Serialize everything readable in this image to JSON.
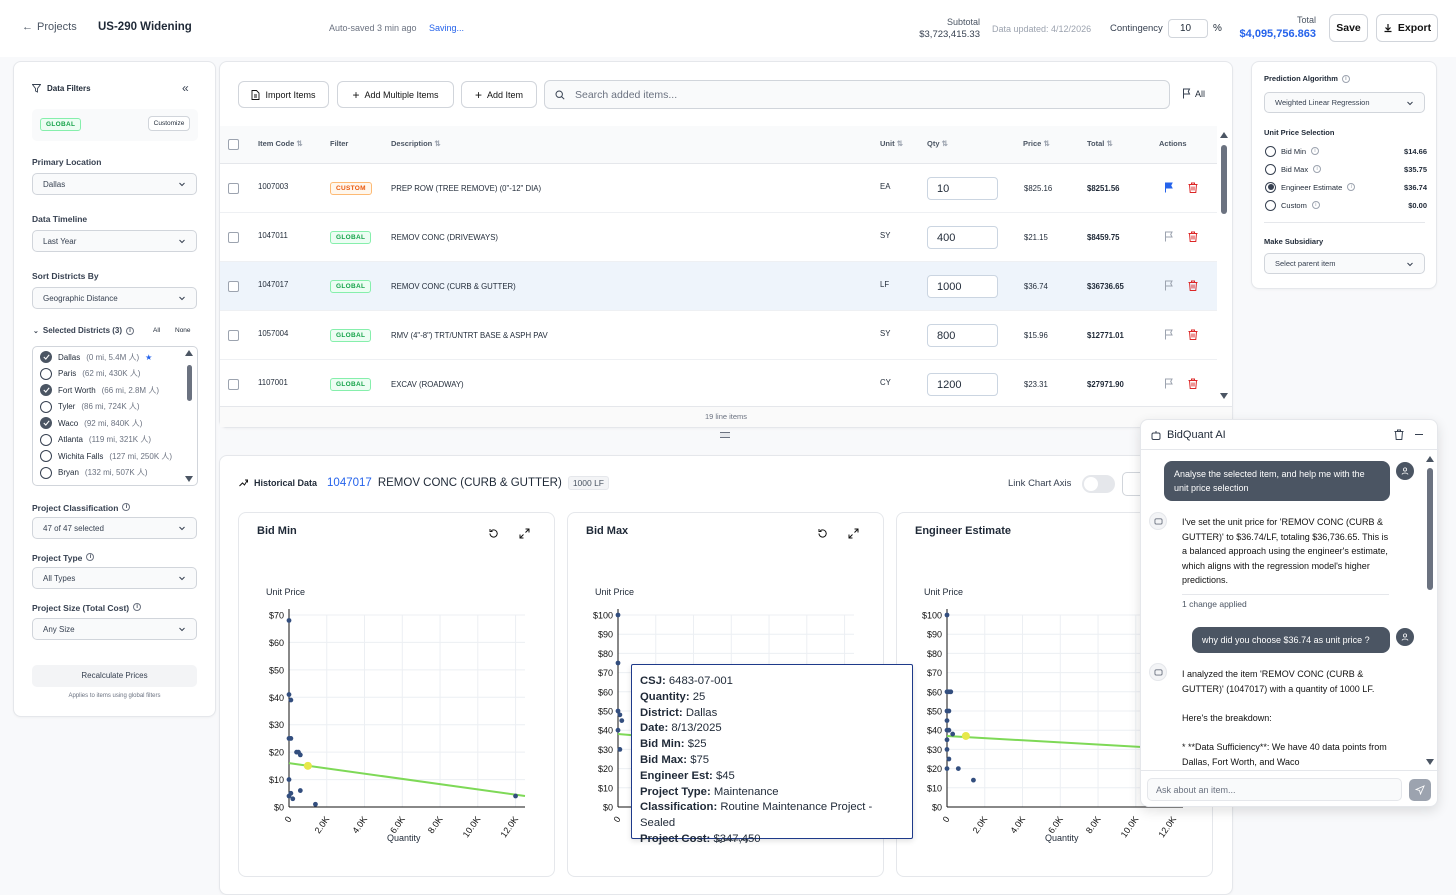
{
  "header": {
    "back": "Projects",
    "project": "US-290 Widening",
    "autosave": "Auto-saved 3 min ago",
    "saving": "Saving...",
    "subtotal_label": "Subtotal",
    "subtotal": "$3,723,415.33",
    "data_updated": "Data updated: 4/12/2026",
    "contingency_label": "Contingency",
    "contingency": "10",
    "pct": "%",
    "total_label": "Total",
    "total": "$4,095,756.863",
    "save": "Save",
    "export": "Export"
  },
  "filters": {
    "title": "Data Filters",
    "badge": "GLOBAL",
    "customize": "Customize",
    "primary_location_label": "Primary Location",
    "primary_location": "Dallas",
    "timeline_label": "Data Timeline",
    "timeline": "Last Year",
    "sort_label": "Sort Districts By",
    "sort": "Geographic Distance",
    "selected_label": "Selected Districts (3)",
    "all": "All",
    "none": "None",
    "districts": [
      {
        "name": "Dallas",
        "meta": "(0 mi, 5.4M 人)",
        "star": "★",
        "checked": true
      },
      {
        "name": "Paris",
        "meta": "(62 mi, 430K 人)",
        "star": "",
        "checked": false
      },
      {
        "name": "Fort Worth",
        "meta": "(66 mi, 2.8M 人)",
        "star": "",
        "checked": true
      },
      {
        "name": "Tyler",
        "meta": "(86 mi, 724K 人)",
        "star": "",
        "checked": false
      },
      {
        "name": "Waco",
        "meta": "(92 mi, 840K 人)",
        "star": "",
        "checked": true
      },
      {
        "name": "Atlanta",
        "meta": "(119 mi, 321K 人)",
        "star": "",
        "checked": false
      },
      {
        "name": "Wichita Falls",
        "meta": "(127 mi, 250K 人)",
        "star": "",
        "checked": false
      },
      {
        "name": "Bryan",
        "meta": "(132 mi, 507K 人)",
        "star": "",
        "checked": false
      }
    ],
    "classification_label": "Project Classification",
    "classification": "47 of 47 selected",
    "type_label": "Project Type",
    "type": "All Types",
    "size_label": "Project Size (Total Cost)",
    "size": "Any Size",
    "recalc": "Recalculate Prices",
    "recalc_note": "Applies to items using global filters"
  },
  "toolbar": {
    "import": "Import Items",
    "add_multiple": "Add Multiple Items",
    "add_item": "Add Item",
    "search_placeholder": "Search added items...",
    "flag_all": "All"
  },
  "table": {
    "headers": {
      "code": "Item Code",
      "filter": "Filter",
      "desc": "Description",
      "unit": "Unit",
      "qty": "Qty",
      "price": "Price",
      "total": "Total",
      "actions": "Actions"
    },
    "rows": [
      {
        "code": "1007003",
        "filter": "CUSTOM",
        "desc": "PREP ROW (TREE REMOVE) (0\"-12\" DIA)",
        "unit": "EA",
        "qty": "10",
        "price": "$825.16",
        "total": "$8251.56",
        "flag": true
      },
      {
        "code": "1047011",
        "filter": "GLOBAL",
        "desc": "REMOV CONC (DRIVEWAYS)",
        "unit": "SY",
        "qty": "400",
        "price": "$21.15",
        "total": "$8459.75",
        "flag": false
      },
      {
        "code": "1047017",
        "filter": "GLOBAL",
        "desc": "REMOV CONC (CURB & GUTTER)",
        "unit": "LF",
        "qty": "1000",
        "price": "$36.74",
        "total": "$36736.65",
        "flag": false
      },
      {
        "code": "1057004",
        "filter": "GLOBAL",
        "desc": "RMV (4\"-8\") TRT/UNTRT BASE & ASPH PAV",
        "unit": "SY",
        "qty": "800",
        "price": "$15.96",
        "total": "$12771.01",
        "flag": false
      },
      {
        "code": "1107001",
        "filter": "GLOBAL",
        "desc": "EXCAV (ROADWAY)",
        "unit": "CY",
        "qty": "1200",
        "price": "$23.31",
        "total": "$27971.90",
        "flag": false
      }
    ],
    "footer": "19 line items"
  },
  "prediction": {
    "algo_label": "Prediction Algorithm",
    "algo": "Weighted Linear Regression",
    "unit_label": "Unit Price Selection",
    "options": [
      {
        "label": "Bid Min",
        "value": "$14.66",
        "checked": false
      },
      {
        "label": "Bid Max",
        "value": "$35.75",
        "checked": false
      },
      {
        "label": "Engineer Estimate",
        "value": "$36.74",
        "checked": true
      },
      {
        "label": "Custom",
        "value": "$0.00",
        "checked": false
      }
    ],
    "subsidiary_label": "Make Subsidiary",
    "subsidiary": "Select parent item"
  },
  "historical": {
    "title": "Historical Data",
    "code": "1047017",
    "desc": "REMOV CONC (CURB & GUTTER)",
    "qty": "1000 LF",
    "link": "Link Chart Axis"
  },
  "chart_data": [
    {
      "type": "scatter",
      "title": "Bid Min",
      "ylabel": "Unit Price",
      "xlabel": "Quantity",
      "ylim": [
        0,
        70
      ],
      "xlim": [
        0,
        12500
      ],
      "yticks": [
        "$0",
        "$10",
        "$20",
        "$30",
        "$40",
        "$50",
        "$60",
        "$70"
      ],
      "xticks": [
        "0",
        "2.0K",
        "4.0K",
        "6.0K",
        "8.0K",
        "10.0K",
        "12.0K"
      ],
      "points": [
        [
          0,
          68
        ],
        [
          0,
          41
        ],
        [
          100,
          39
        ],
        [
          0,
          25
        ],
        [
          100,
          25
        ],
        [
          400,
          20
        ],
        [
          500,
          20
        ],
        [
          600,
          19
        ],
        [
          0,
          10
        ],
        [
          100,
          5
        ],
        [
          0,
          4
        ],
        [
          200,
          3
        ],
        [
          600,
          6
        ],
        [
          1400,
          1
        ],
        [
          12000,
          4
        ]
      ],
      "selected": [
        1000,
        15
      ],
      "trend": [
        [
          0,
          16
        ],
        [
          12500,
          4
        ]
      ]
    },
    {
      "type": "scatter",
      "title": "Bid Max",
      "ylabel": "Unit Price",
      "xlabel": "Quantity",
      "ylim": [
        0,
        100
      ],
      "xlim": [
        0,
        12500
      ],
      "yticks": [
        "$0",
        "$10",
        "$20",
        "$30",
        "$40",
        "$50",
        "$60",
        "$70",
        "$80",
        "$90",
        "$100"
      ],
      "xticks": [
        "0",
        "2.0K",
        "4.0K",
        "6.0K",
        "8.0K",
        "10.0K",
        "12.0K"
      ],
      "points": [
        [
          0,
          100
        ],
        [
          0,
          75
        ],
        [
          0,
          50
        ],
        [
          100,
          48
        ],
        [
          0,
          40
        ],
        [
          200,
          45
        ],
        [
          100,
          30
        ]
      ],
      "selected": [
        1000,
        38
      ],
      "trend": [
        [
          0,
          38
        ],
        [
          12500,
          28
        ]
      ]
    },
    {
      "type": "scatter",
      "title": "Engineer Estimate",
      "ylabel": "Unit Price",
      "xlabel": "Quantity",
      "ylim": [
        0,
        100
      ],
      "xlim": [
        0,
        12500
      ],
      "yticks": [
        "$0",
        "$10",
        "$20",
        "$30",
        "$40",
        "$50",
        "$60",
        "$70",
        "$80",
        "$90",
        "$100"
      ],
      "xticks": [
        "0",
        "2.0K",
        "4.0K",
        "6.0K",
        "8.0K",
        "10.0K",
        "12.0K"
      ],
      "points": [
        [
          0,
          100
        ],
        [
          0,
          60
        ],
        [
          100,
          60
        ],
        [
          200,
          60
        ],
        [
          0,
          50
        ],
        [
          100,
          50
        ],
        [
          0,
          45
        ],
        [
          0,
          40
        ],
        [
          100,
          40
        ],
        [
          300,
          38
        ],
        [
          0,
          35
        ],
        [
          0,
          30
        ],
        [
          100,
          25
        ],
        [
          0,
          20
        ],
        [
          600,
          20
        ],
        [
          1400,
          14
        ]
      ],
      "selected": [
        1000,
        37
      ],
      "trend": [
        [
          0,
          37
        ],
        [
          12500,
          30
        ]
      ]
    }
  ],
  "tooltip": [
    {
      "k": "CSJ:",
      "v": "6483-07-001"
    },
    {
      "k": "Quantity:",
      "v": "25"
    },
    {
      "k": "District:",
      "v": "Dallas"
    },
    {
      "k": "Date:",
      "v": "8/13/2025"
    },
    {
      "k": "Bid Min:",
      "v": "$25"
    },
    {
      "k": "Bid Max:",
      "v": "$75"
    },
    {
      "k": "Engineer Est:",
      "v": "$45"
    },
    {
      "k": "Project Type:",
      "v": "Maintenance"
    },
    {
      "k": "Classification:",
      "v": "Routine Maintenance Project - Sealed"
    },
    {
      "k": "Project Cost:",
      "v": "$347,450"
    }
  ],
  "chat": {
    "title": "BidQuant AI",
    "u1": "Analyse the selected item, and help me with the unit price selection",
    "b1": "I've set the unit price for 'REMOV CONC (CURB & GUTTER)' to $36.74/LF, totaling $36,736.65. This is a balanced approach using the engineer's estimate, which aligns with the regression model's higher predictions.",
    "change": "1 change applied",
    "u2": "why did you choose $36.74 as unit price ?",
    "b2a": "I analyzed the item 'REMOV CONC (CURB & GUTTER)' (1047017) with a quantity of 1000 LF.",
    "b2b": "Here's the breakdown:",
    "b2c": "*   **Data Sufficiency**: We have 40 data points from Dallas, Fort Worth, and Waco",
    "placeholder": "Ask about an item..."
  },
  "colors": {
    "accent": "#2563eb",
    "point": "#334e7e",
    "trend": "#7ed957",
    "selected": "#e6e84a",
    "danger": "#dc2626"
  }
}
